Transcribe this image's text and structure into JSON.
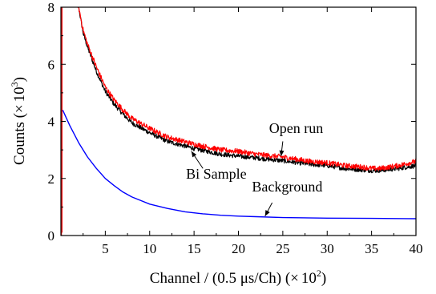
{
  "chart_data": {
    "type": "line",
    "title": "",
    "xlabel": {
      "main": "Channel / (0.5 ",
      "mu": "μ",
      "unit_rest": "s/Ch) (",
      "times": "×",
      "ten": "10",
      "exp": "2",
      "close": ")"
    },
    "ylabel": {
      "main": "Counts (",
      "times": "×",
      "ten": "10",
      "exp": "3",
      "close": ")"
    },
    "xlim": [
      0,
      40
    ],
    "ylim": [
      0,
      8
    ],
    "xticks": [
      5,
      10,
      15,
      20,
      25,
      30,
      35,
      40
    ],
    "xtick_labels": [
      "5",
      "10",
      "15",
      "20",
      "25",
      "30",
      "35",
      "40"
    ],
    "yticks": [
      0,
      2,
      4,
      6,
      8
    ],
    "ytick_labels": [
      "0",
      "2",
      "4",
      "6",
      "8"
    ],
    "grid": false,
    "series": [
      {
        "name": "Open run",
        "color": "#ff0000",
        "x": [
          0.05,
          0.1,
          0.2,
          1.5,
          2.0,
          2.5,
          3,
          4,
          5,
          6,
          7,
          8,
          10,
          12,
          15,
          18,
          20,
          22,
          25,
          28,
          30,
          32,
          34,
          35,
          36,
          38,
          40
        ],
        "y": [
          0,
          9.0,
          8.4,
          8.4,
          8.0,
          7.2,
          6.7,
          5.9,
          5.2,
          4.75,
          4.4,
          4.1,
          3.75,
          3.45,
          3.2,
          3.0,
          2.95,
          2.85,
          2.75,
          2.6,
          2.55,
          2.45,
          2.4,
          2.35,
          2.35,
          2.45,
          2.6
        ]
      },
      {
        "name": "Bi Sample",
        "color": "#000000",
        "x": [
          1.5,
          2.0,
          2.5,
          3,
          4,
          5,
          6,
          7,
          8,
          10,
          12,
          15,
          18,
          20,
          22,
          25,
          28,
          30,
          32,
          34,
          35,
          36,
          38,
          40
        ],
        "y": [
          8.4,
          8.0,
          7.1,
          6.6,
          5.75,
          5.05,
          4.6,
          4.25,
          3.95,
          3.6,
          3.3,
          3.05,
          2.85,
          2.78,
          2.72,
          2.62,
          2.5,
          2.45,
          2.35,
          2.3,
          2.28,
          2.28,
          2.35,
          2.45
        ]
      },
      {
        "name": "Background",
        "color": "#0000ff",
        "x": [
          0.2,
          1,
          2,
          3,
          4,
          5,
          6,
          7,
          8,
          10,
          12,
          14,
          16,
          18,
          20,
          22,
          25,
          30,
          35,
          40
        ],
        "y": [
          4.4,
          3.85,
          3.25,
          2.75,
          2.35,
          2.0,
          1.75,
          1.52,
          1.35,
          1.1,
          0.95,
          0.83,
          0.76,
          0.71,
          0.68,
          0.66,
          0.63,
          0.61,
          0.6,
          0.59
        ]
      }
    ],
    "annotations": [
      {
        "text": "Open run",
        "x": 26.5,
        "y": 3.6
      },
      {
        "text": "Bi Sample",
        "x": 17.5,
        "y": 2.0
      },
      {
        "text": "Background",
        "x": 25.5,
        "y": 1.55
      }
    ]
  }
}
